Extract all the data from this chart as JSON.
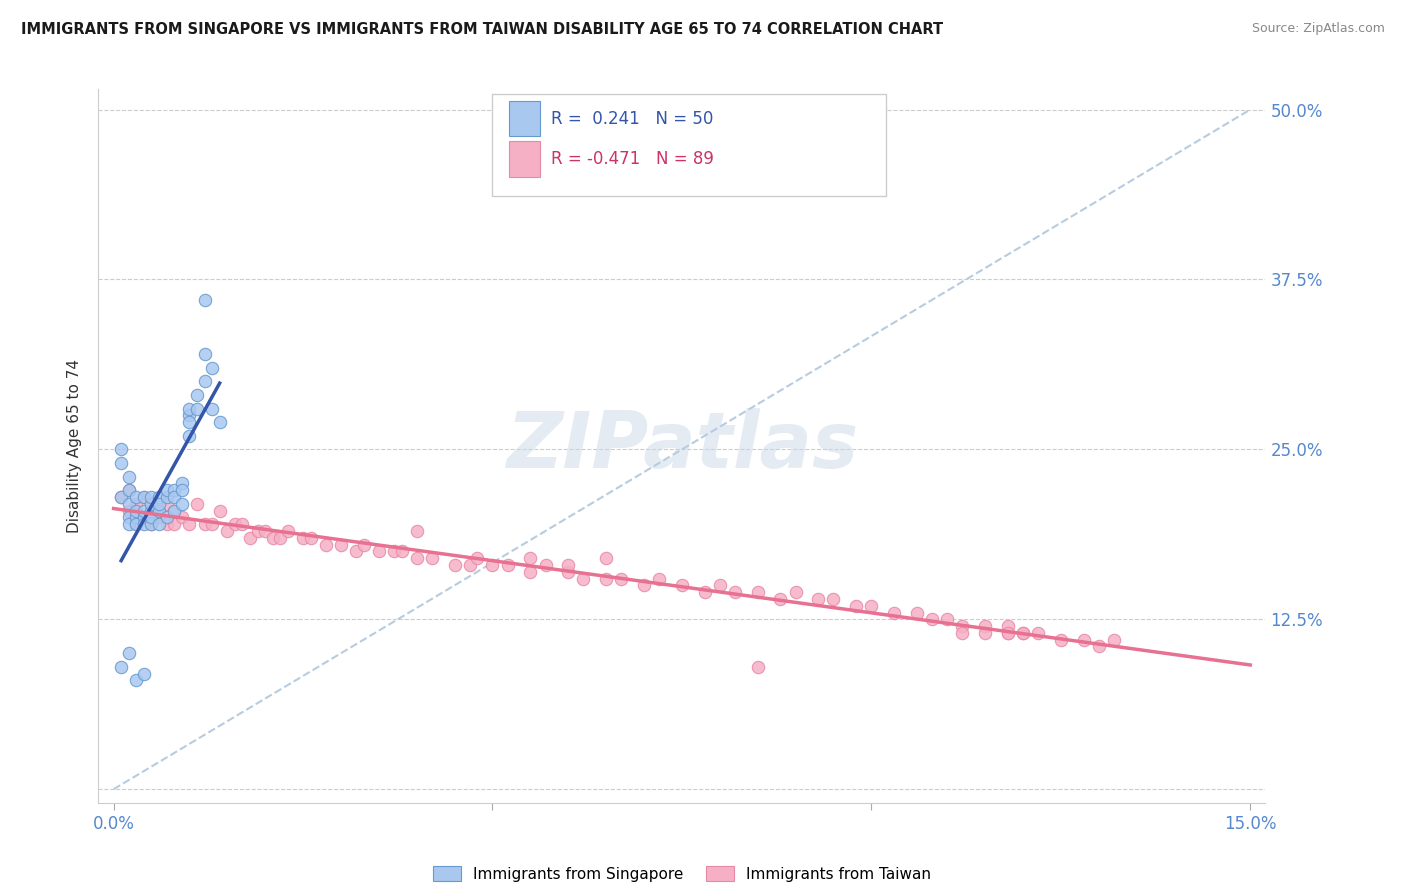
{
  "title": "IMMIGRANTS FROM SINGAPORE VS IMMIGRANTS FROM TAIWAN DISABILITY AGE 65 TO 74 CORRELATION CHART",
  "source": "Source: ZipAtlas.com",
  "ylabel": "Disability Age 65 to 74",
  "singapore_R": 0.241,
  "singapore_N": 50,
  "taiwan_R": -0.471,
  "taiwan_N": 89,
  "singapore_color": "#a8c8f0",
  "singapore_edge_color": "#6699cc",
  "taiwan_color": "#f5b0c5",
  "taiwan_edge_color": "#e888a8",
  "singapore_line_color": "#3355aa",
  "taiwan_line_color": "#e87090",
  "trendline_color": "#b8cce0",
  "right_tick_color": "#5588cc",
  "legend_text_sg_color": "#3355aa",
  "legend_text_tw_color": "#cc3366",
  "watermark_color": "#ccd8e8",
  "xmin": 0.0,
  "xmax": 0.15,
  "ymin": 0.0,
  "ymax": 0.5,
  "yticks": [
    0.0,
    0.125,
    0.25,
    0.375,
    0.5
  ],
  "ytick_labels": [
    "",
    "12.5%",
    "25.0%",
    "37.5%",
    "50.0%"
  ],
  "xticks": [
    0.0,
    0.05,
    0.1,
    0.15
  ],
  "xtick_labels_bottom": [
    "0.0%",
    "",
    "",
    "15.0%"
  ],
  "legend_singapore_label": "Immigrants from Singapore",
  "legend_taiwan_label": "Immigrants from Taiwan",
  "sg_x": [
    0.001,
    0.002,
    0.002,
    0.002,
    0.002,
    0.003,
    0.003,
    0.003,
    0.003,
    0.004,
    0.004,
    0.004,
    0.004,
    0.005,
    0.005,
    0.005,
    0.005,
    0.005,
    0.006,
    0.006,
    0.006,
    0.006,
    0.007,
    0.007,
    0.007,
    0.008,
    0.008,
    0.008,
    0.009,
    0.009,
    0.009,
    0.01,
    0.01,
    0.01,
    0.01,
    0.011,
    0.011,
    0.012,
    0.012,
    0.012,
    0.013,
    0.013,
    0.014,
    0.001,
    0.002,
    0.003,
    0.004,
    0.001,
    0.001,
    0.002
  ],
  "sg_y": [
    0.215,
    0.2,
    0.22,
    0.195,
    0.21,
    0.2,
    0.215,
    0.195,
    0.205,
    0.2,
    0.215,
    0.205,
    0.195,
    0.205,
    0.21,
    0.195,
    0.2,
    0.215,
    0.215,
    0.205,
    0.195,
    0.21,
    0.215,
    0.2,
    0.22,
    0.22,
    0.215,
    0.205,
    0.225,
    0.21,
    0.22,
    0.275,
    0.27,
    0.26,
    0.28,
    0.28,
    0.29,
    0.3,
    0.32,
    0.36,
    0.28,
    0.31,
    0.27,
    0.09,
    0.1,
    0.08,
    0.085,
    0.24,
    0.25,
    0.23
  ],
  "tw_x": [
    0.001,
    0.002,
    0.002,
    0.003,
    0.003,
    0.004,
    0.004,
    0.005,
    0.005,
    0.005,
    0.006,
    0.006,
    0.007,
    0.007,
    0.008,
    0.008,
    0.009,
    0.01,
    0.011,
    0.012,
    0.013,
    0.014,
    0.015,
    0.016,
    0.017,
    0.018,
    0.019,
    0.02,
    0.021,
    0.022,
    0.023,
    0.025,
    0.026,
    0.028,
    0.03,
    0.032,
    0.033,
    0.035,
    0.037,
    0.038,
    0.04,
    0.042,
    0.045,
    0.047,
    0.048,
    0.05,
    0.052,
    0.055,
    0.057,
    0.06,
    0.062,
    0.065,
    0.067,
    0.07,
    0.072,
    0.075,
    0.078,
    0.08,
    0.082,
    0.085,
    0.088,
    0.09,
    0.093,
    0.095,
    0.098,
    0.1,
    0.103,
    0.106,
    0.108,
    0.11,
    0.112,
    0.115,
    0.118,
    0.12,
    0.118,
    0.122,
    0.125,
    0.128,
    0.13,
    0.132,
    0.115,
    0.12,
    0.112,
    0.118,
    0.055,
    0.06,
    0.065,
    0.04,
    0.085
  ],
  "tw_y": [
    0.215,
    0.22,
    0.205,
    0.21,
    0.195,
    0.2,
    0.215,
    0.21,
    0.195,
    0.205,
    0.2,
    0.205,
    0.195,
    0.21,
    0.195,
    0.205,
    0.2,
    0.195,
    0.21,
    0.195,
    0.195,
    0.205,
    0.19,
    0.195,
    0.195,
    0.185,
    0.19,
    0.19,
    0.185,
    0.185,
    0.19,
    0.185,
    0.185,
    0.18,
    0.18,
    0.175,
    0.18,
    0.175,
    0.175,
    0.175,
    0.17,
    0.17,
    0.165,
    0.165,
    0.17,
    0.165,
    0.165,
    0.16,
    0.165,
    0.16,
    0.155,
    0.155,
    0.155,
    0.15,
    0.155,
    0.15,
    0.145,
    0.15,
    0.145,
    0.145,
    0.14,
    0.145,
    0.14,
    0.14,
    0.135,
    0.135,
    0.13,
    0.13,
    0.125,
    0.125,
    0.12,
    0.12,
    0.115,
    0.115,
    0.12,
    0.115,
    0.11,
    0.11,
    0.105,
    0.11,
    0.115,
    0.115,
    0.115,
    0.115,
    0.17,
    0.165,
    0.17,
    0.19,
    0.09
  ]
}
